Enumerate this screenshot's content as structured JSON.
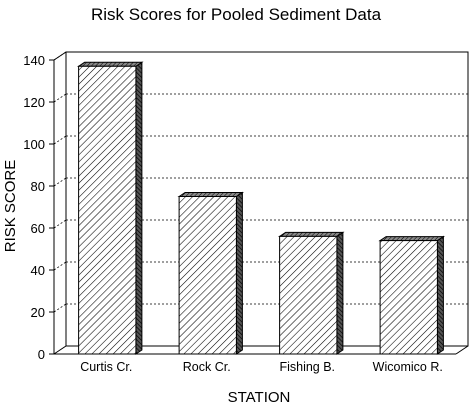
{
  "chart_data": {
    "type": "bar",
    "title": "Risk  Scores for Pooled Sediment Data",
    "xlabel": "STATION",
    "ylabel": "RISK SCORE",
    "categories": [
      "Curtis Cr.",
      "Rock Cr.",
      "Fishing B.",
      "Wicomico R."
    ],
    "values": [
      137,
      75,
      56,
      54
    ],
    "ylim": [
      0,
      140
    ],
    "yticks": [
      "0",
      "20",
      "40",
      "60",
      "80",
      "100",
      "120",
      "140"
    ],
    "grid": true,
    "legend": "none",
    "style": "3d-hatched"
  }
}
